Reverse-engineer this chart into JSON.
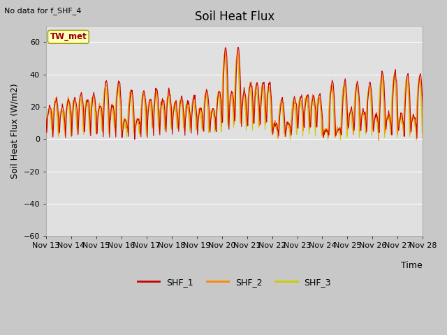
{
  "title": "Soil Heat Flux",
  "note": "No data for f_SHF_4",
  "ylabel": "Soil Heat Flux (W/m2)",
  "xlabel": "Time",
  "ylim": [
    -60,
    70
  ],
  "yticks": [
    -60,
    -40,
    -20,
    0,
    20,
    40,
    60
  ],
  "fig_bg_color": "#c8c8c8",
  "plot_bg": "#e0e0e0",
  "legend_items": [
    "SHF_1",
    "SHF_2",
    "SHF_3"
  ],
  "legend_colors": [
    "#cc0000",
    "#ff8800",
    "#cccc00"
  ],
  "line_colors": [
    "#cc0000",
    "#ff8800",
    "#cccc00"
  ],
  "tw_met_label": "TW_met",
  "tw_met_box_color": "#ffffbb",
  "tw_met_text_color": "#990000",
  "x_tick_labels": [
    "Nov 13",
    "Nov 14",
    "Nov 15",
    "Nov 16",
    "Nov 17",
    "Nov 18",
    "Nov 19",
    "Nov 20",
    "Nov 21",
    "Nov 22",
    "Nov 23",
    "Nov 24",
    "Nov 25",
    "Nov 26",
    "Nov 27",
    "Nov 28"
  ],
  "num_points": 720,
  "seed": 42
}
